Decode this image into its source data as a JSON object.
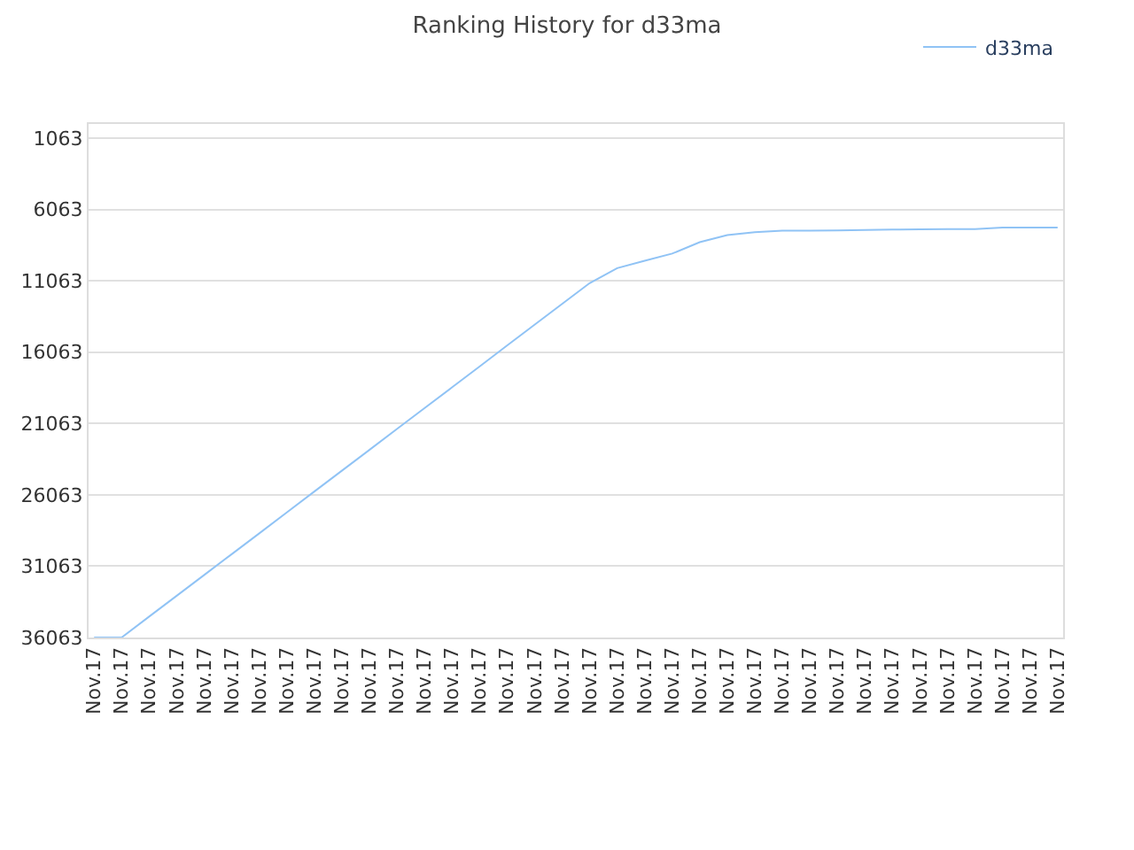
{
  "chart_data": {
    "type": "line",
    "title": "Ranking History for d33ma",
    "categories": [
      "Nov.17",
      "Nov.17",
      "Nov.17",
      "Nov.17",
      "Nov.17",
      "Nov.17",
      "Nov.17",
      "Nov.17",
      "Nov.17",
      "Nov.17",
      "Nov.17",
      "Nov.17",
      "Nov.17",
      "Nov.17",
      "Nov.17",
      "Nov.17",
      "Nov.17",
      "Nov.17",
      "Nov.17",
      "Nov.17",
      "Nov.17",
      "Nov.17",
      "Nov.17",
      "Nov.17",
      "Nov.17",
      "Nov.17",
      "Nov.17",
      "Nov.17",
      "Nov.17",
      "Nov.17",
      "Nov.17",
      "Nov.17",
      "Nov.17",
      "Nov.17",
      "Nov.17",
      "Nov.17"
    ],
    "series": [
      {
        "name": "d33ma",
        "color": "#90c3f5",
        "values": [
          36063,
          36063,
          34600,
          33140,
          31680,
          30220,
          28760,
          27300,
          25830,
          24370,
          22910,
          21450,
          19990,
          18530,
          17070,
          15600,
          14140,
          12680,
          11220,
          10170,
          9650,
          9150,
          8350,
          7850,
          7650,
          7550,
          7540,
          7520,
          7500,
          7460,
          7450,
          7440,
          7430,
          7330,
          7320,
          7320
        ]
      }
    ],
    "ylim": [
      36063,
      63
    ],
    "yticks": [
      1063,
      6063,
      11063,
      16063,
      21063,
      26063,
      31063,
      36063
    ],
    "grid": "y",
    "legend": "top right",
    "marker": "none",
    "line_style": "solid"
  }
}
